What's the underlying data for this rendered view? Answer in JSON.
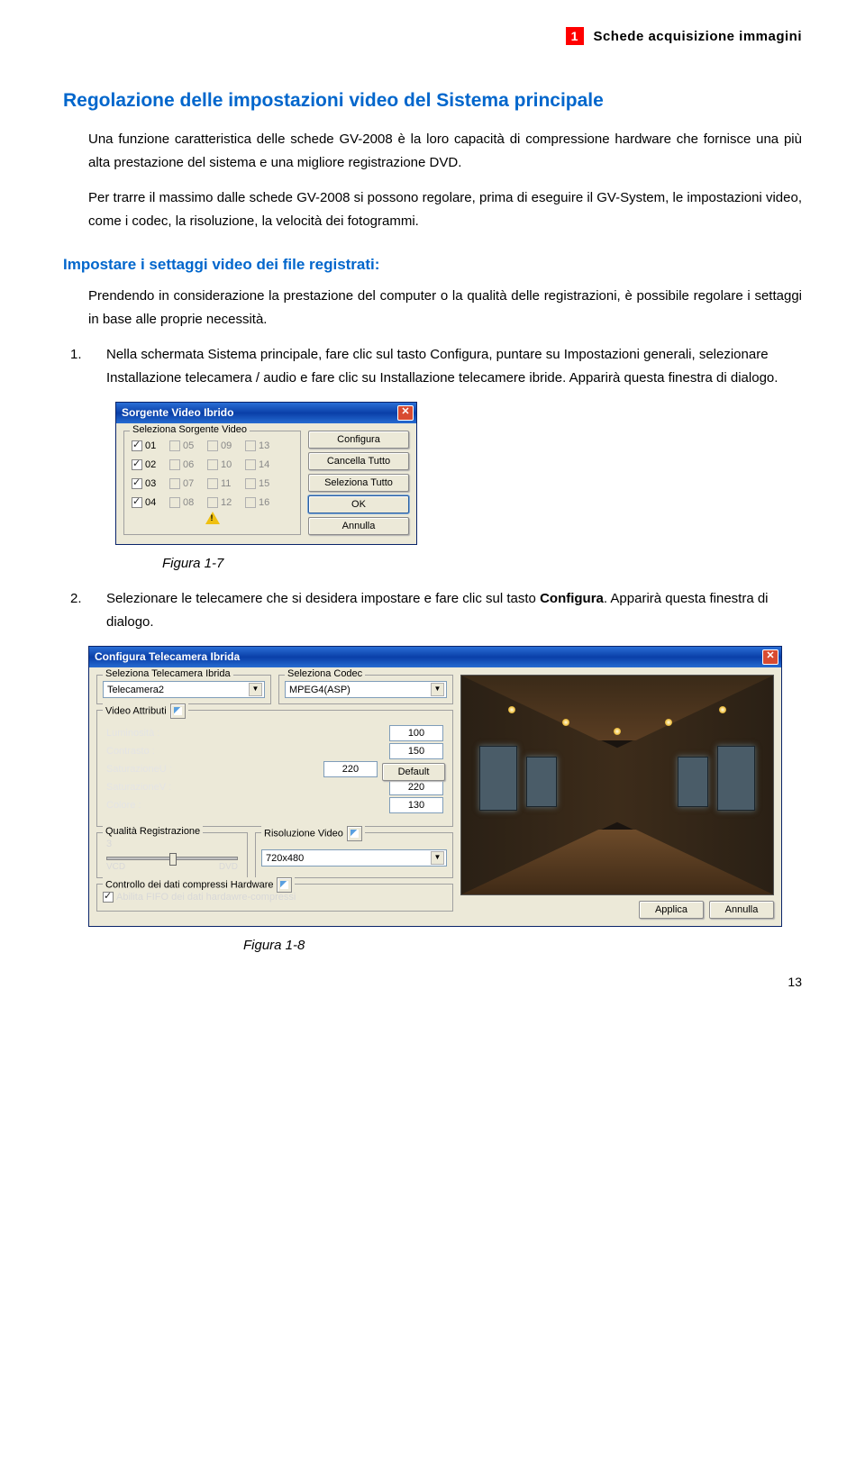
{
  "chapter": {
    "num": "1",
    "title": "Schede acquisizione immagini"
  },
  "section_title": "Regolazione delle impostazioni video del Sistema principale",
  "p1": "Una funzione caratteristica delle schede GV-2008 è la loro capacità di compressione hardware che fornisce una più alta prestazione del sistema e una migliore registrazione DVD.",
  "p2": "Per trarre il massimo dalle schede GV-2008 si possono regolare, prima di eseguire il GV-System, le impostazioni video, come i codec, la risoluzione, la velocità dei fotogrammi.",
  "subsection_title": "Impostare i settaggi video dei file registrati:",
  "p3": "Prendendo in considerazione la prestazione del computer o la qualità delle registrazioni, è possibile regolare i settaggi in base alle proprie necessità.",
  "step1": "Nella schermata Sistema principale, fare clic sul tasto Configura, puntare su Impostazioni generali, selezionare Installazione telecamera / audio e fare clic su Installazione telecamere ibride. Apparirà questa finestra di dialogo.",
  "fig1": "Figura 1-7",
  "step2_pre": "Selezionare le telecamere che si desidera impostare e fare clic sul tasto ",
  "step2_bold": "Configura",
  "step2_post": ". Apparirà questa finestra di dialogo.",
  "fig2": "Figura 1-8",
  "page_num": "13",
  "dlg1": {
    "title": "Sorgente Video Ibrido",
    "legend": "Seleziona Sorgente Video",
    "cells": [
      {
        "n": "01",
        "on": true,
        "en": true
      },
      {
        "n": "05",
        "on": false,
        "en": false
      },
      {
        "n": "09",
        "on": false,
        "en": false
      },
      {
        "n": "13",
        "on": false,
        "en": false
      },
      {
        "n": "02",
        "on": true,
        "en": true
      },
      {
        "n": "06",
        "on": false,
        "en": false
      },
      {
        "n": "10",
        "on": false,
        "en": false
      },
      {
        "n": "14",
        "on": false,
        "en": false
      },
      {
        "n": "03",
        "on": true,
        "en": true
      },
      {
        "n": "07",
        "on": false,
        "en": false
      },
      {
        "n": "11",
        "on": false,
        "en": false
      },
      {
        "n": "15",
        "on": false,
        "en": false
      },
      {
        "n": "04",
        "on": true,
        "en": true
      },
      {
        "n": "08",
        "on": false,
        "en": false
      },
      {
        "n": "12",
        "on": false,
        "en": false
      },
      {
        "n": "16",
        "on": false,
        "en": false
      }
    ],
    "buttons": {
      "cfg": "Configura",
      "clr": "Cancella Tutto",
      "sel": "Seleziona Tutto",
      "ok": "OK",
      "cancel": "Annulla"
    }
  },
  "dlg2": {
    "title": "Configura Telecamera Ibrida",
    "cam_legend": "Seleziona Telecamera Ibrida",
    "cam_value": "Telecamera2",
    "codec_legend": "Seleziona Codec",
    "codec_value": "MPEG4(ASP)",
    "attr_legend": "Video Attributi",
    "attrs": {
      "lum_l": "Luminosità :",
      "lum_v": "100",
      "con_l": "Contrasto :",
      "con_v": "150",
      "satu_l": "SaturazioneU :",
      "satu_v": "220",
      "satv_l": "SaturazioneV :",
      "satv_v": "220",
      "col_l": "Colore :",
      "col_v": "130",
      "default": "Default"
    },
    "quality_legend": "Qualità Registrazione",
    "quality_value": "3",
    "quality_min": "VCD",
    "quality_max": "DVD",
    "res_legend": "Risoluzione Video",
    "res_value": "720x480",
    "hw_legend": "Controllo dei dati compressi Hardware",
    "hw_chk": "Abilita FIFO dei dati hardawre-compressi",
    "apply": "Applica",
    "cancel": "Annulla"
  }
}
